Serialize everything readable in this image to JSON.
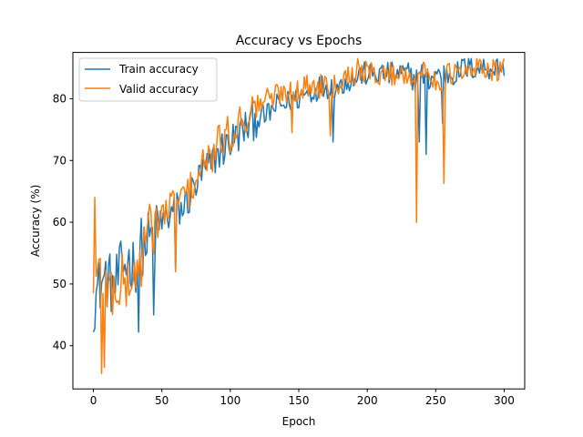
{
  "chart_data": {
    "type": "line",
    "title": "Accuracy vs Epochs",
    "xlabel": "Epoch",
    "ylabel": "Accuracy (%)",
    "xlim": [
      -15,
      315
    ],
    "ylim": [
      33,
      87.5
    ],
    "xticks": [
      0,
      50,
      100,
      150,
      200,
      250,
      300
    ],
    "yticks": [
      40,
      50,
      60,
      70,
      80
    ],
    "grid": false,
    "legend_position": "upper-left",
    "series": [
      {
        "name": "Train accuracy",
        "color": "#1f77b4",
        "x": [
          0,
          5,
          10,
          15,
          20,
          25,
          30,
          35,
          40,
          45,
          50,
          55,
          60,
          65,
          70,
          75,
          80,
          85,
          90,
          95,
          100,
          105,
          110,
          115,
          120,
          125,
          130,
          135,
          140,
          145,
          150,
          155,
          160,
          165,
          170,
          175,
          180,
          185,
          190,
          195,
          200,
          205,
          210,
          215,
          220,
          225,
          230,
          235,
          240,
          245,
          250,
          255,
          260,
          265,
          270,
          275,
          280,
          285,
          290,
          295,
          300
        ],
        "values": [
          47,
          50,
          51,
          49,
          52,
          54,
          53,
          56,
          57,
          58,
          60,
          61,
          62,
          62,
          64,
          66,
          68,
          69,
          71,
          72,
          73,
          74,
          75,
          76,
          77,
          77,
          78,
          79,
          79,
          80,
          80,
          81,
          81,
          82,
          82,
          82,
          82,
          83,
          83,
          84,
          84,
          84,
          84,
          84,
          84,
          84,
          84,
          83,
          84,
          83,
          84,
          84,
          84,
          84,
          85,
          85,
          85,
          85,
          85,
          85,
          85
        ],
        "dips": [
          [
            33,
            42.2
          ],
          [
            44,
            45
          ],
          [
            60,
            52
          ],
          [
            175,
            73
          ],
          [
            238,
            73
          ],
          [
            243,
            71
          ],
          [
            255,
            76
          ]
        ]
      },
      {
        "name": "Valid accuracy",
        "color": "#ff7f0e",
        "x": [
          0,
          5,
          10,
          15,
          20,
          25,
          30,
          35,
          40,
          45,
          50,
          55,
          60,
          65,
          70,
          75,
          80,
          85,
          90,
          95,
          100,
          105,
          110,
          115,
          120,
          125,
          130,
          135,
          140,
          145,
          150,
          155,
          160,
          165,
          170,
          175,
          180,
          185,
          190,
          195,
          200,
          205,
          210,
          215,
          220,
          225,
          230,
          235,
          240,
          245,
          250,
          255,
          260,
          265,
          270,
          275,
          280,
          285,
          290,
          295,
          300
        ],
        "values": [
          48,
          52,
          49,
          49,
          50,
          50,
          51,
          54,
          58,
          60,
          61,
          62,
          63,
          64,
          65,
          67,
          69,
          70,
          72,
          74,
          74,
          76,
          77,
          78,
          79,
          80,
          80,
          81,
          81,
          82,
          81,
          82,
          82,
          82,
          83,
          82,
          83,
          84,
          84,
          85,
          84,
          84,
          84,
          84,
          84,
          84,
          84,
          84,
          84,
          84,
          83,
          83,
          84,
          84,
          84,
          84,
          85,
          85,
          85,
          84,
          85
        ],
        "dips": [
          [
            1,
            64
          ],
          [
            6,
            35.5
          ],
          [
            8,
            36.5
          ],
          [
            60,
            52
          ],
          [
            145,
            74.5
          ],
          [
            173,
            74
          ],
          [
            236,
            60
          ],
          [
            256,
            66.3
          ]
        ]
      }
    ]
  }
}
